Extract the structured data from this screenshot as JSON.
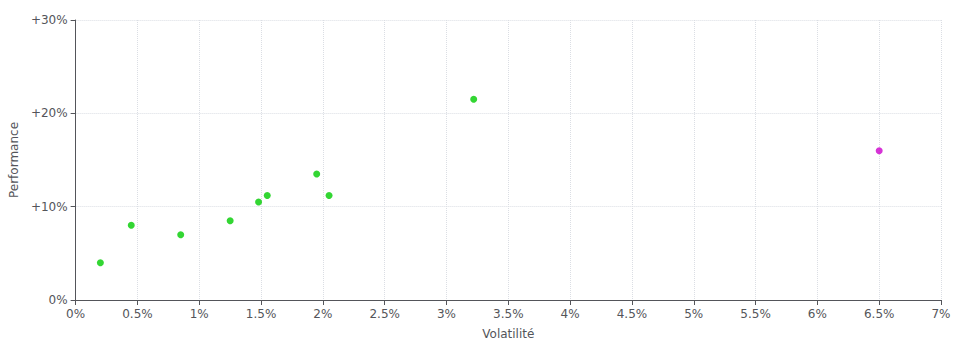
{
  "chart_data": {
    "type": "scatter",
    "xlabel": "Volatilité",
    "ylabel": "Performance",
    "series": [
      {
        "color": "#00cc00",
        "x": [
          0.2,
          0.45,
          0.85,
          1.25,
          1.48,
          1.55,
          1.95,
          2.05,
          3.22
        ],
        "values": [
          4.0,
          8.0,
          7.0,
          8.5,
          10.5,
          11.2,
          13.5,
          11.2,
          21.5
        ]
      },
      {
        "color": "#cc00cc",
        "x": [
          6.5
        ],
        "values": [
          16.0
        ]
      }
    ],
    "marker": "circle",
    "xlim": [
      0,
      7
    ],
    "ylim": [
      0,
      30
    ],
    "xticks": [
      {
        "value": 0,
        "label": "0%"
      },
      {
        "value": 0.5,
        "label": "0.5%"
      },
      {
        "value": 1.0,
        "label": "1%"
      },
      {
        "value": 1.5,
        "label": "1.5%"
      },
      {
        "value": 2.0,
        "label": "2%"
      },
      {
        "value": 2.5,
        "label": "2.5%"
      },
      {
        "value": 3.0,
        "label": "3%"
      },
      {
        "value": 3.5,
        "label": "3.5%"
      },
      {
        "value": 4.0,
        "label": "4%"
      },
      {
        "value": 4.5,
        "label": "4.5%"
      },
      {
        "value": 5.0,
        "label": "5%"
      },
      {
        "value": 5.5,
        "label": "5.5%"
      },
      {
        "value": 6.0,
        "label": "6%"
      },
      {
        "value": 6.5,
        "label": "6.5%"
      },
      {
        "value": 7.0,
        "label": "7%"
      }
    ],
    "yticks": [
      {
        "value": 0,
        "label": "0%"
      },
      {
        "value": 10,
        "label": "+10%"
      },
      {
        "value": 20,
        "label": "+20%"
      },
      {
        "value": 30,
        "label": "+30%"
      }
    ],
    "grid": true
  }
}
